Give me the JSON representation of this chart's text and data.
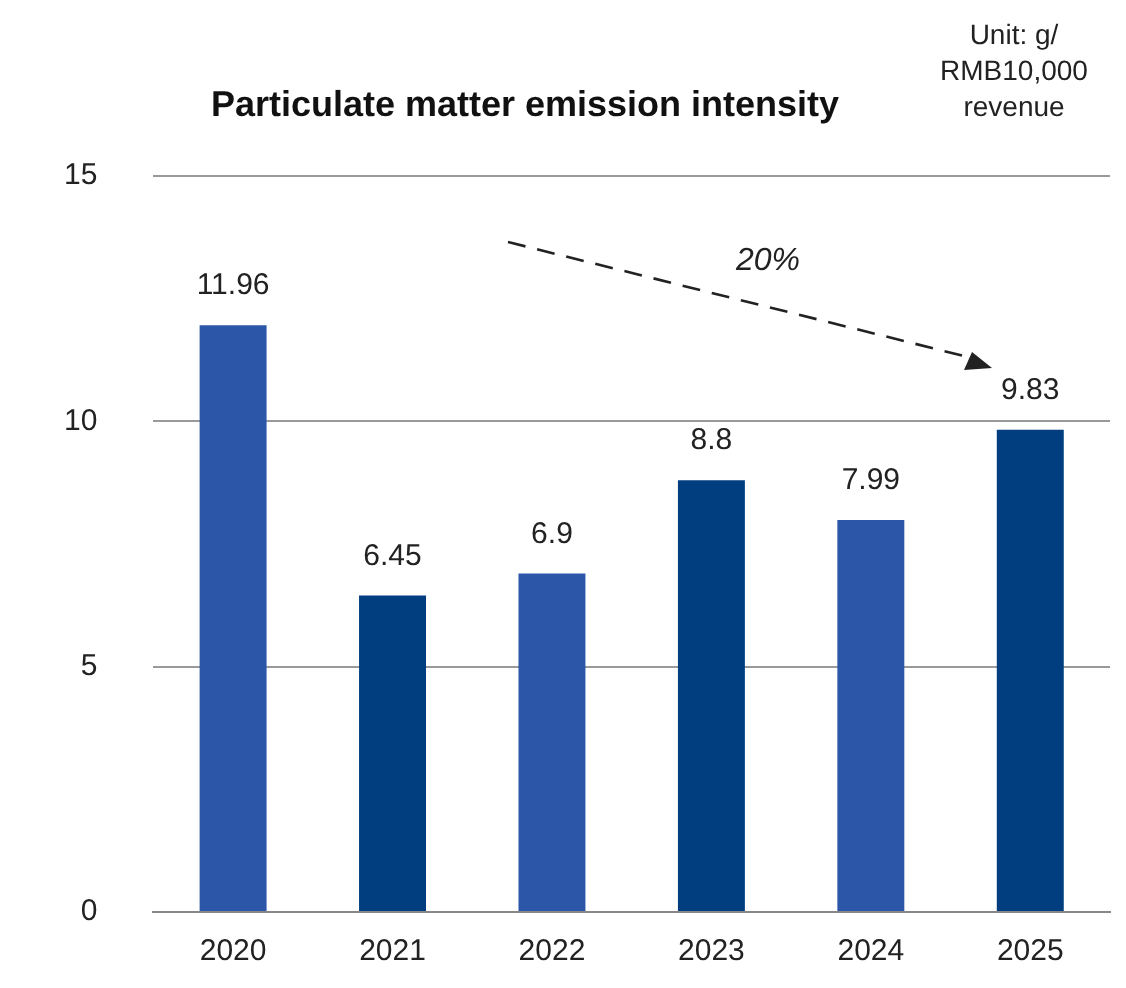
{
  "chart_data": {
    "type": "bar",
    "title": "Particulate matter emission intensity",
    "ylabel": "Unit: g/\nRMB10,000\nrevenue",
    "categories": [
      "2020",
      "2021",
      "2022",
      "2023",
      "2024",
      "2025"
    ],
    "values": [
      11.96,
      6.45,
      6.9,
      8.8,
      7.99,
      9.83
    ],
    "colors": [
      "#2c56a8",
      "#003e80",
      "#2c56a8",
      "#003e80",
      "#2c56a8",
      "#003e80"
    ],
    "ylim": [
      0,
      15
    ],
    "yticks": [
      0,
      5,
      10,
      15
    ],
    "grid": "y",
    "data_labels": true,
    "legend": false,
    "annotations": [
      "20%"
    ]
  }
}
